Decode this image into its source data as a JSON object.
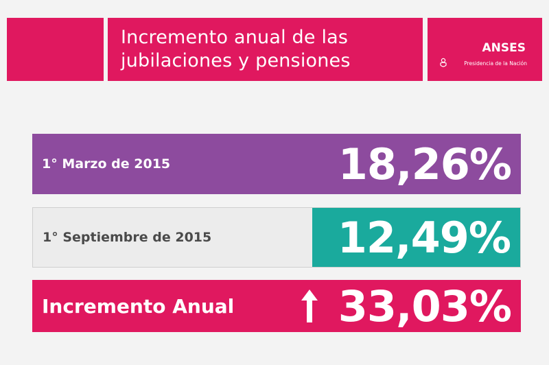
{
  "header": {
    "title_line1": "Incremento anual de las",
    "title_line2": "jubilaciones y pensiones",
    "logo_name": "ANSES",
    "logo_subtitle": "Presidencia de la Nación"
  },
  "rows": [
    {
      "label": "1° Marzo de 2015",
      "value": "18,26%"
    },
    {
      "label": "1° Septiembre de 2015",
      "value": "12,49%"
    },
    {
      "label": "Incremento Anual",
      "value": "33,03%",
      "icon": "arrow-up-icon"
    }
  ],
  "colors": {
    "brand_pink": "#e0185f",
    "purple": "#8d4b9e",
    "teal": "#1aaa9d",
    "light_gray": "#ececec"
  }
}
